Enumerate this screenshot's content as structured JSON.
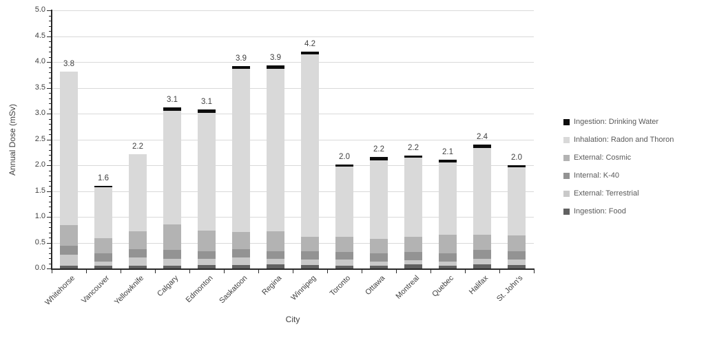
{
  "chart_data": {
    "type": "bar",
    "subtype": "stacked-column",
    "title": "",
    "xlabel": "City",
    "ylabel": "Annual Dose (mSv)",
    "ylim": [
      0.0,
      5.0
    ],
    "ytick_step": 0.5,
    "ytick_minor_step": 0.1,
    "ytick_labels": [
      "0.0",
      "0.5",
      "1.0",
      "1.5",
      "2.0",
      "2.5",
      "3.0",
      "3.5",
      "4.0",
      "4.5",
      "5.0"
    ],
    "grid": true,
    "legend_position": "right",
    "categories": [
      "Whitehorse",
      "Vancouver",
      "Yellowknife",
      "Calgary",
      "Edmonton",
      "Saskatoon",
      "Regina",
      "Winnipeg",
      "Toronto",
      "Ottawa",
      "Montreal",
      "Quebec",
      "Halifax",
      "St. John's"
    ],
    "total_labels": [
      "3.8",
      "1.6",
      "2.2",
      "3.1",
      "3.1",
      "3.9",
      "3.9",
      "4.2",
      "2.0",
      "2.2",
      "2.2",
      "2.1",
      "2.4",
      "2.0"
    ],
    "totals": [
      3.82,
      1.6,
      2.22,
      3.12,
      3.08,
      3.92,
      3.93,
      4.2,
      2.02,
      2.16,
      2.19,
      2.11,
      2.4,
      2.0
    ],
    "series": [
      {
        "name": "Ingestion: Food",
        "color": "#616161",
        "values": [
          0.06,
          0.05,
          0.06,
          0.06,
          0.07,
          0.07,
          0.08,
          0.07,
          0.06,
          0.06,
          0.08,
          0.06,
          0.08,
          0.07
        ]
      },
      {
        "name": "External: Terrestrial",
        "color": "#c9c9c9",
        "values": [
          0.21,
          0.08,
          0.15,
          0.13,
          0.12,
          0.14,
          0.11,
          0.11,
          0.11,
          0.07,
          0.08,
          0.07,
          0.11,
          0.1
        ]
      },
      {
        "name": "Internal: K-40",
        "color": "#939393",
        "values": [
          0.17,
          0.16,
          0.16,
          0.17,
          0.15,
          0.16,
          0.15,
          0.15,
          0.15,
          0.17,
          0.16,
          0.16,
          0.17,
          0.17
        ]
      },
      {
        "name": "External: Cosmic",
        "color": "#b3b3b3",
        "values": [
          0.4,
          0.3,
          0.35,
          0.49,
          0.4,
          0.34,
          0.38,
          0.28,
          0.3,
          0.28,
          0.3,
          0.36,
          0.29,
          0.3
        ]
      },
      {
        "name": "Inhalation: Radon and Thoron",
        "color": "#d9d9d9",
        "values": [
          2.98,
          0.99,
          1.5,
          2.21,
          2.28,
          3.16,
          3.15,
          3.54,
          1.35,
          1.51,
          1.53,
          1.41,
          1.68,
          1.32
        ]
      },
      {
        "name": "Ingestion: Drinking Water",
        "color": "#0d0d0d",
        "values": [
          0.0,
          0.02,
          0.0,
          0.06,
          0.06,
          0.05,
          0.06,
          0.05,
          0.05,
          0.07,
          0.04,
          0.05,
          0.07,
          0.04
        ]
      }
    ],
    "legend_order_top_to_bottom": [
      "Ingestion: Drinking Water",
      "Inhalation: Radon and Thoron",
      "External: Cosmic",
      "Internal: K-40",
      "External: Terrestrial",
      "Ingestion: Food"
    ]
  }
}
